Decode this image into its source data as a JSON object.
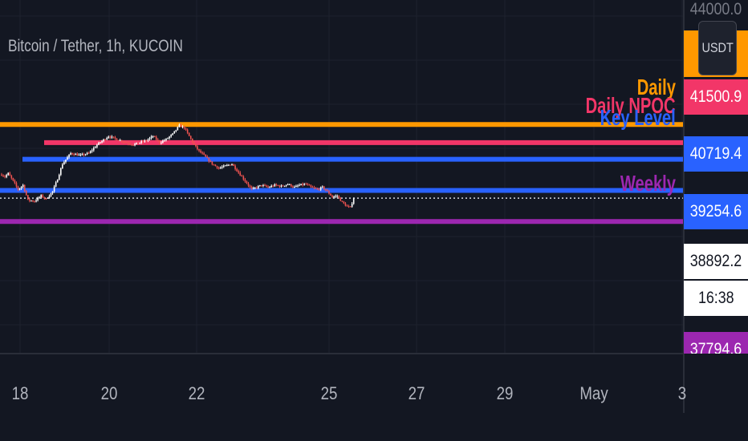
{
  "header": {
    "symbol_title": "Bitcoin / Tether, 1h, KUCOIN"
  },
  "price_axis": {
    "currency": "USDT",
    "top_tick": "44000.0",
    "tags": [
      {
        "label": "41500.9",
        "bg": "#f23668",
        "fg": "#ffffff"
      },
      {
        "label": "40719.4",
        "bg": "#2962ff",
        "fg": "#ffffff"
      },
      {
        "label": "39254.6",
        "bg": "#2962ff",
        "fg": "#ffffff"
      },
      {
        "label": "38892.2",
        "bg": "#ffffff",
        "fg": "#131722"
      },
      {
        "label": "16:38",
        "bg": "#ffffff",
        "fg": "#131722"
      }
    ],
    "bottom_tag": {
      "label": "37794.6",
      "bg": "#9c27b0",
      "fg": "#ffffff"
    }
  },
  "time_axis": {
    "ticks": [
      "18",
      "20",
      "22",
      "25",
      "27",
      "29",
      "May",
      "3"
    ]
  },
  "colors": {
    "up": "#ffffff",
    "down": "#ef5350",
    "background": "#131722",
    "grid": "#1e222d"
  },
  "chart_data": {
    "type": "candlestick",
    "title": "Bitcoin / Tether, 1h, KUCOIN",
    "x_range": [
      "Apr 17",
      "May 3"
    ],
    "y_range": [
      37500,
      44000
    ],
    "current_price": 38892.2,
    "levels": [
      {
        "name": "Daily",
        "price": 42350.0,
        "color": "#ff9800"
      },
      {
        "name": "Daily NPOC",
        "price": 41500.9,
        "color": "#f23668"
      },
      {
        "name": "Key Level",
        "price": 40719.4,
        "color": "#2962ff"
      },
      {
        "name": "",
        "price": 39254.6,
        "color": "#2962ff"
      },
      {
        "name": "Weekly",
        "price": 37794.6,
        "color": "#9c27b0"
      }
    ],
    "path": [
      [
        0,
        40000
      ],
      [
        2,
        39900
      ],
      [
        4,
        40050
      ],
      [
        7,
        39700
      ],
      [
        10,
        39300
      ],
      [
        13,
        39500
      ],
      [
        16,
        38800
      ],
      [
        20,
        38750
      ],
      [
        24,
        39000
      ],
      [
        27,
        38850
      ],
      [
        31,
        39200
      ],
      [
        34,
        39800
      ],
      [
        37,
        40500
      ],
      [
        42,
        41000
      ],
      [
        48,
        40900
      ],
      [
        53,
        41000
      ],
      [
        58,
        41400
      ],
      [
        65,
        41800
      ],
      [
        72,
        41600
      ],
      [
        80,
        41400
      ],
      [
        88,
        41600
      ],
      [
        92,
        41800
      ],
      [
        96,
        41500
      ],
      [
        100,
        41650
      ],
      [
        104,
        41900
      ],
      [
        108,
        42300
      ],
      [
        111,
        42200
      ],
      [
        114,
        41800
      ],
      [
        117,
        41400
      ],
      [
        120,
        41100
      ],
      [
        123,
        40900
      ],
      [
        128,
        40500
      ],
      [
        132,
        40300
      ],
      [
        136,
        40400
      ],
      [
        140,
        40500
      ],
      [
        143,
        40200
      ],
      [
        146,
        39900
      ],
      [
        149,
        39600
      ],
      [
        152,
        39300
      ],
      [
        155,
        39400
      ],
      [
        158,
        39500
      ],
      [
        162,
        39400
      ],
      [
        166,
        39500
      ],
      [
        170,
        39450
      ],
      [
        174,
        39550
      ],
      [
        178,
        39400
      ],
      [
        181,
        39500
      ],
      [
        185,
        39550
      ],
      [
        188,
        39400
      ],
      [
        192,
        39300
      ],
      [
        195,
        39400
      ],
      [
        198,
        39200
      ],
      [
        201,
        38950
      ],
      [
        204,
        39000
      ],
      [
        207,
        38700
      ],
      [
        210,
        38500
      ],
      [
        212,
        38450
      ],
      [
        214,
        38892
      ]
    ]
  }
}
